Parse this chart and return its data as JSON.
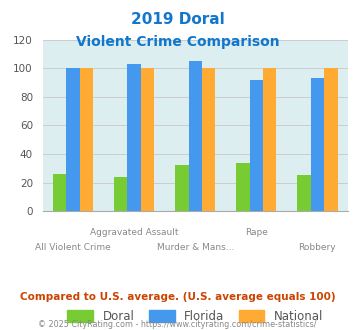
{
  "title_line1": "2019 Doral",
  "title_line2": "Violent Crime Comparison",
  "categories": [
    "All Violent Crime",
    "Aggravated Assault",
    "Murder & Mans...",
    "Rape",
    "Robbery"
  ],
  "series": {
    "Doral": [
      26,
      24,
      32,
      34,
      25
    ],
    "Florida": [
      100,
      103,
      105,
      92,
      93
    ],
    "National": [
      100,
      100,
      100,
      100,
      100
    ]
  },
  "colors": {
    "Doral": "#77cc33",
    "Florida": "#4499ee",
    "National": "#ffaa33"
  },
  "ylim": [
    0,
    120
  ],
  "yticks": [
    0,
    20,
    40,
    60,
    80,
    100,
    120
  ],
  "grid_color": "#cccccc",
  "bg_color": "#ddeef0",
  "footer_text": "Compared to U.S. average. (U.S. average equals 100)",
  "copyright_text": "© 2025 CityRating.com - https://www.cityrating.com/crime-statistics/",
  "title_color": "#1177cc",
  "footer_color": "#cc4400",
  "copyright_color": "#888888",
  "bar_width": 0.22
}
